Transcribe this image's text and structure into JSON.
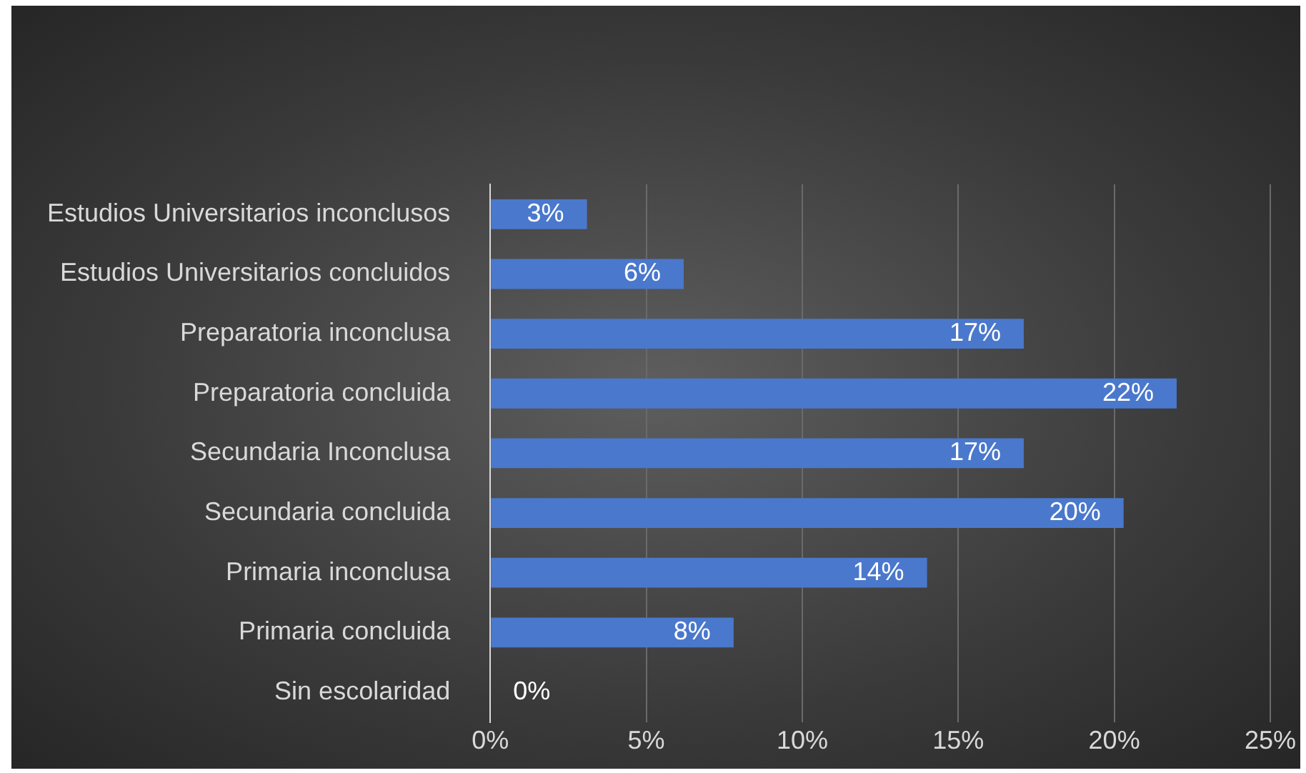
{
  "chart_data": {
    "type": "bar",
    "orientation": "horizontal",
    "categories": [
      "Estudios Universitarios inconclusos",
      "Estudios Universitarios concluidos",
      "Preparatoria inconclusa",
      "Preparatoria concluida",
      "Secundaria Inconclusa",
      "Secundaria concluida",
      "Primaria inconclusa",
      "Primaria concluida",
      "Sin escolaridad"
    ],
    "values": [
      3.1,
      6.2,
      17.1,
      22.0,
      17.1,
      20.3,
      14.0,
      7.8,
      0
    ],
    "value_labels": [
      "3%",
      "6%",
      "17%",
      "22%",
      "17%",
      "20%",
      "14%",
      "8%",
      "0%"
    ],
    "color": "#4a78cc",
    "xlim": [
      0,
      25
    ],
    "xticks": [
      {
        "value": 0,
        "label": "0%"
      },
      {
        "value": 5,
        "label": "5%"
      },
      {
        "value": 10,
        "label": "10%"
      },
      {
        "value": 15,
        "label": "15%"
      },
      {
        "value": 20,
        "label": "20%"
      },
      {
        "value": 25,
        "label": "25%"
      }
    ],
    "grid": "x",
    "legend": false
  }
}
